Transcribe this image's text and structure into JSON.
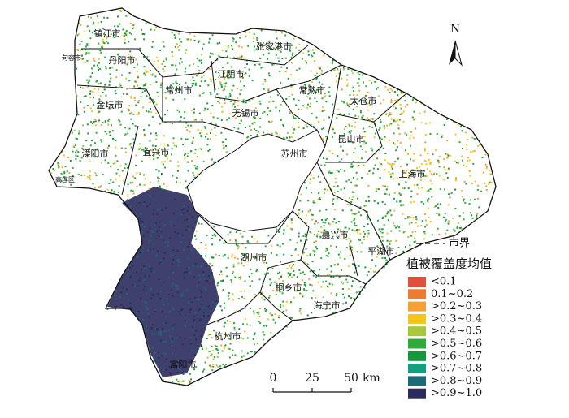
{
  "north": "N",
  "cities": [
    {
      "label": "镇江市"
    },
    {
      "label": "句容市"
    },
    {
      "label": "丹阳市"
    },
    {
      "label": "张家港市"
    },
    {
      "label": "江阴市"
    },
    {
      "label": "常州市"
    },
    {
      "label": "常熟市"
    },
    {
      "label": "太仓市"
    },
    {
      "label": "金坛市"
    },
    {
      "label": "无锡市"
    },
    {
      "label": "昆山市"
    },
    {
      "label": "苏州市"
    },
    {
      "label": "溧阳市"
    },
    {
      "label": "宜兴市"
    },
    {
      "label": "高淳区"
    },
    {
      "label": "上海市"
    },
    {
      "label": "嘉兴市"
    },
    {
      "label": "平湖市"
    },
    {
      "label": "湖州市"
    },
    {
      "label": "桐乡市"
    },
    {
      "label": "海宁市"
    },
    {
      "label": "杭州市"
    },
    {
      "label": "富阳市"
    }
  ],
  "legend": {
    "boundary": "市界",
    "title": "植被覆盖度均值",
    "items": [
      {
        "label": "<0.1",
        "color": "#e0503a"
      },
      {
        "label": "0.1~0.2",
        "color": "#f07a30"
      },
      {
        "label": ">0.2~0.3",
        "color": "#f5a030"
      },
      {
        "label": ">0.3~0.4",
        "color": "#f5c518"
      },
      {
        "label": ">0.4~0.5",
        "color": "#a8c83a"
      },
      {
        "label": ">0.5~0.6",
        "color": "#2faa3a"
      },
      {
        "label": ">0.6~0.7",
        "color": "#17963e"
      },
      {
        "label": ">0.7~0.8",
        "color": "#10a080"
      },
      {
        "label": ">0.8~0.9",
        "color": "#1a6a78"
      },
      {
        "label": ">0.9~1.0",
        "color": "#2b2b5c"
      }
    ]
  },
  "scale": {
    "ticks": [
      0,
      25,
      50
    ],
    "unit": "km"
  }
}
